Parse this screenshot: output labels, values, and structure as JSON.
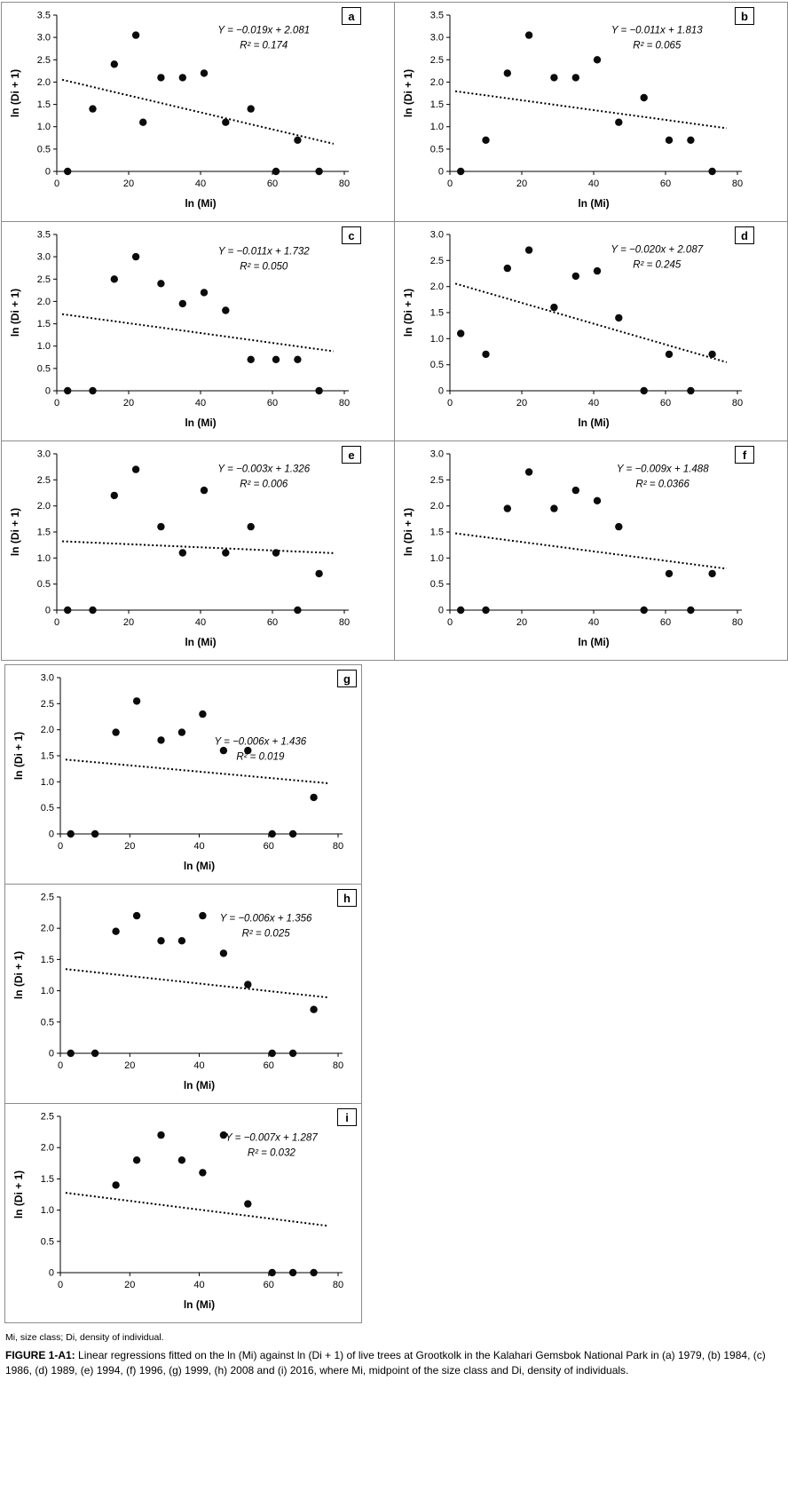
{
  "page": {
    "footnote": "Mi, size class; Di, density of individual.",
    "caption_label": "FIGURE 1-A1:",
    "caption_body": "Linear regressions fitted on the ln (Mi) against ln (Di + 1) of live trees at Grootkolk in the Kalahari Gemsbok National Park in (a) 1979, (b) 1984, (c) 1986, (d) 1989, (e) 1994, (f) 1996, (g) 1999, (h) 2008 and (i) 2016, where Mi, midpoint of the size class and Di, density of individuals."
  },
  "chart_data": {
    "type": "scatter",
    "xlabel": "ln (Mi)",
    "ylabel": "ln (Di + 1)",
    "xlim": [
      0,
      80
    ],
    "xticks": [
      0,
      20,
      40,
      60,
      80
    ],
    "point_color": "#0b0b0b",
    "trend_style": "dotted",
    "legend": "none",
    "grid": false,
    "panels": [
      {
        "id": "a",
        "year": "1979",
        "equation": "Y = −0.019x + 2.081",
        "r2_label": "R² = 0.174",
        "slope": -0.019,
        "intercept": 2.081,
        "r2": 0.174,
        "ylim": [
          0,
          3.5
        ],
        "yticks": [
          0,
          0.5,
          1,
          1.5,
          2,
          2.5,
          3,
          3.5
        ],
        "eq_pos": [
          0.72,
          0.85
        ],
        "points": [
          [
            3,
            0
          ],
          [
            10,
            1.4
          ],
          [
            16,
            2.4
          ],
          [
            22,
            3.05
          ],
          [
            24,
            1.1
          ],
          [
            29,
            2.1
          ],
          [
            35,
            2.1
          ],
          [
            41,
            2.2
          ],
          [
            47,
            1.1
          ],
          [
            54,
            1.4
          ],
          [
            61,
            0
          ],
          [
            67,
            0.7
          ],
          [
            73,
            0
          ]
        ]
      },
      {
        "id": "b",
        "year": "1984",
        "equation": "Y = −0.011x + 1.813",
        "r2_label": "R² = 0.065",
        "slope": -0.011,
        "intercept": 1.813,
        "r2": 0.065,
        "ylim": [
          0,
          3.5
        ],
        "yticks": [
          0,
          0.5,
          1,
          1.5,
          2,
          2.5,
          3,
          3.5
        ],
        "eq_pos": [
          0.72,
          0.85
        ],
        "points": [
          [
            3,
            0
          ],
          [
            10,
            0.7
          ],
          [
            16,
            2.2
          ],
          [
            22,
            3.05
          ],
          [
            29,
            2.1
          ],
          [
            35,
            2.1
          ],
          [
            41,
            2.5
          ],
          [
            47,
            1.1
          ],
          [
            54,
            1.65
          ],
          [
            61,
            0.7
          ],
          [
            67,
            0.7
          ],
          [
            73,
            0
          ]
        ]
      },
      {
        "id": "c",
        "year": "1986",
        "equation": "Y = −0.011x + 1.732",
        "r2_label": "R² = 0.050",
        "slope": -0.011,
        "intercept": 1.732,
        "r2": 0.05,
        "ylim": [
          0,
          3.5
        ],
        "yticks": [
          0,
          0.5,
          1,
          1.5,
          2,
          2.5,
          3,
          3.5
        ],
        "eq_pos": [
          0.72,
          0.84
        ],
        "points": [
          [
            3,
            0
          ],
          [
            10,
            0
          ],
          [
            16,
            2.5
          ],
          [
            22,
            3.0
          ],
          [
            29,
            2.4
          ],
          [
            35,
            1.95
          ],
          [
            41,
            2.2
          ],
          [
            47,
            1.8
          ],
          [
            54,
            0.7
          ],
          [
            61,
            0.7
          ],
          [
            67,
            0.7
          ],
          [
            73,
            0
          ]
        ]
      },
      {
        "id": "d",
        "year": "1989",
        "equation": "Y = −0.020x + 2.087",
        "r2_label": "R² = 0.245",
        "slope": -0.02,
        "intercept": 2.087,
        "r2": 0.245,
        "ylim": [
          0,
          3.0
        ],
        "yticks": [
          0,
          0.5,
          1,
          1.5,
          2,
          2.5,
          3
        ],
        "eq_pos": [
          0.72,
          0.85
        ],
        "points": [
          [
            3,
            1.1
          ],
          [
            10,
            0.7
          ],
          [
            16,
            2.35
          ],
          [
            22,
            2.7
          ],
          [
            29,
            1.6
          ],
          [
            35,
            2.2
          ],
          [
            41,
            2.3
          ],
          [
            47,
            1.4
          ],
          [
            54,
            0
          ],
          [
            61,
            0.7
          ],
          [
            67,
            0
          ],
          [
            73,
            0.7
          ]
        ]
      },
      {
        "id": "e",
        "year": "1994",
        "equation": "Y = −0.003x + 1.326",
        "r2_label": "R² = 0.006",
        "slope": -0.003,
        "intercept": 1.326,
        "r2": 0.006,
        "ylim": [
          0,
          3.0
        ],
        "yticks": [
          0,
          0.5,
          1,
          1.5,
          2,
          2.5,
          3
        ],
        "eq_pos": [
          0.72,
          0.85
        ],
        "points": [
          [
            3,
            0
          ],
          [
            10,
            0
          ],
          [
            16,
            2.2
          ],
          [
            22,
            2.7
          ],
          [
            29,
            1.6
          ],
          [
            35,
            1.1
          ],
          [
            41,
            2.3
          ],
          [
            47,
            1.1
          ],
          [
            54,
            1.6
          ],
          [
            61,
            1.1
          ],
          [
            67,
            0
          ],
          [
            73,
            0.7
          ]
        ]
      },
      {
        "id": "f",
        "year": "1996",
        "equation": "Y = −0.009x + 1.488",
        "r2_label": "R² = 0.0366",
        "slope": -0.009,
        "intercept": 1.488,
        "r2": 0.0366,
        "ylim": [
          0,
          3.0
        ],
        "yticks": [
          0,
          0.5,
          1,
          1.5,
          2,
          2.5,
          3
        ],
        "eq_pos": [
          0.74,
          0.85
        ],
        "points": [
          [
            3,
            0
          ],
          [
            10,
            0
          ],
          [
            16,
            1.95
          ],
          [
            22,
            2.65
          ],
          [
            29,
            1.95
          ],
          [
            35,
            2.3
          ],
          [
            41,
            2.1
          ],
          [
            47,
            1.6
          ],
          [
            54,
            0
          ],
          [
            61,
            0.7
          ],
          [
            67,
            0
          ],
          [
            73,
            0.7
          ]
        ]
      },
      {
        "id": "g",
        "year": "1999",
        "equation": "Y = −0.006x + 1.436",
        "r2_label": "R² = 0.019",
        "slope": -0.006,
        "intercept": 1.436,
        "r2": 0.019,
        "ylim": [
          0,
          3.0
        ],
        "yticks": [
          0,
          0.5,
          1,
          1.5,
          2,
          2.5,
          3
        ],
        "eq_pos": [
          0.72,
          0.54
        ],
        "points": [
          [
            3,
            0
          ],
          [
            10,
            0
          ],
          [
            16,
            1.95
          ],
          [
            22,
            2.55
          ],
          [
            29,
            1.8
          ],
          [
            35,
            1.95
          ],
          [
            41,
            2.3
          ],
          [
            47,
            1.6
          ],
          [
            54,
            1.6
          ],
          [
            61,
            0
          ],
          [
            67,
            0
          ],
          [
            73,
            0.7
          ]
        ]
      },
      {
        "id": "h",
        "year": "2008",
        "equation": "Y = −0.006x + 1.356",
        "r2_label": "R² = 0.025",
        "slope": -0.006,
        "intercept": 1.356,
        "r2": 0.025,
        "ylim": [
          0,
          2.5
        ],
        "yticks": [
          0,
          0.5,
          1,
          1.5,
          2,
          2.5
        ],
        "eq_pos": [
          0.74,
          0.81
        ],
        "points": [
          [
            3,
            0
          ],
          [
            10,
            0
          ],
          [
            16,
            1.95
          ],
          [
            22,
            2.2
          ],
          [
            29,
            1.8
          ],
          [
            35,
            1.8
          ],
          [
            41,
            2.2
          ],
          [
            47,
            1.6
          ],
          [
            54,
            1.1
          ],
          [
            61,
            0
          ],
          [
            67,
            0
          ],
          [
            73,
            0.7
          ]
        ]
      },
      {
        "id": "i",
        "year": "2016",
        "equation": "Y = −0.007x + 1.287",
        "r2_label": "R² = 0.032",
        "slope": -0.007,
        "intercept": 1.287,
        "r2": 0.032,
        "ylim": [
          0,
          2.5
        ],
        "yticks": [
          0,
          0.5,
          1,
          1.5,
          2,
          2.5
        ],
        "eq_pos": [
          0.76,
          0.81
        ],
        "points": [
          [
            16,
            1.4
          ],
          [
            22,
            1.8
          ],
          [
            29,
            2.2
          ],
          [
            35,
            1.8
          ],
          [
            41,
            1.6
          ],
          [
            47,
            2.2
          ],
          [
            54,
            1.1
          ],
          [
            61,
            0
          ],
          [
            67,
            0
          ],
          [
            73,
            0
          ]
        ]
      }
    ]
  }
}
